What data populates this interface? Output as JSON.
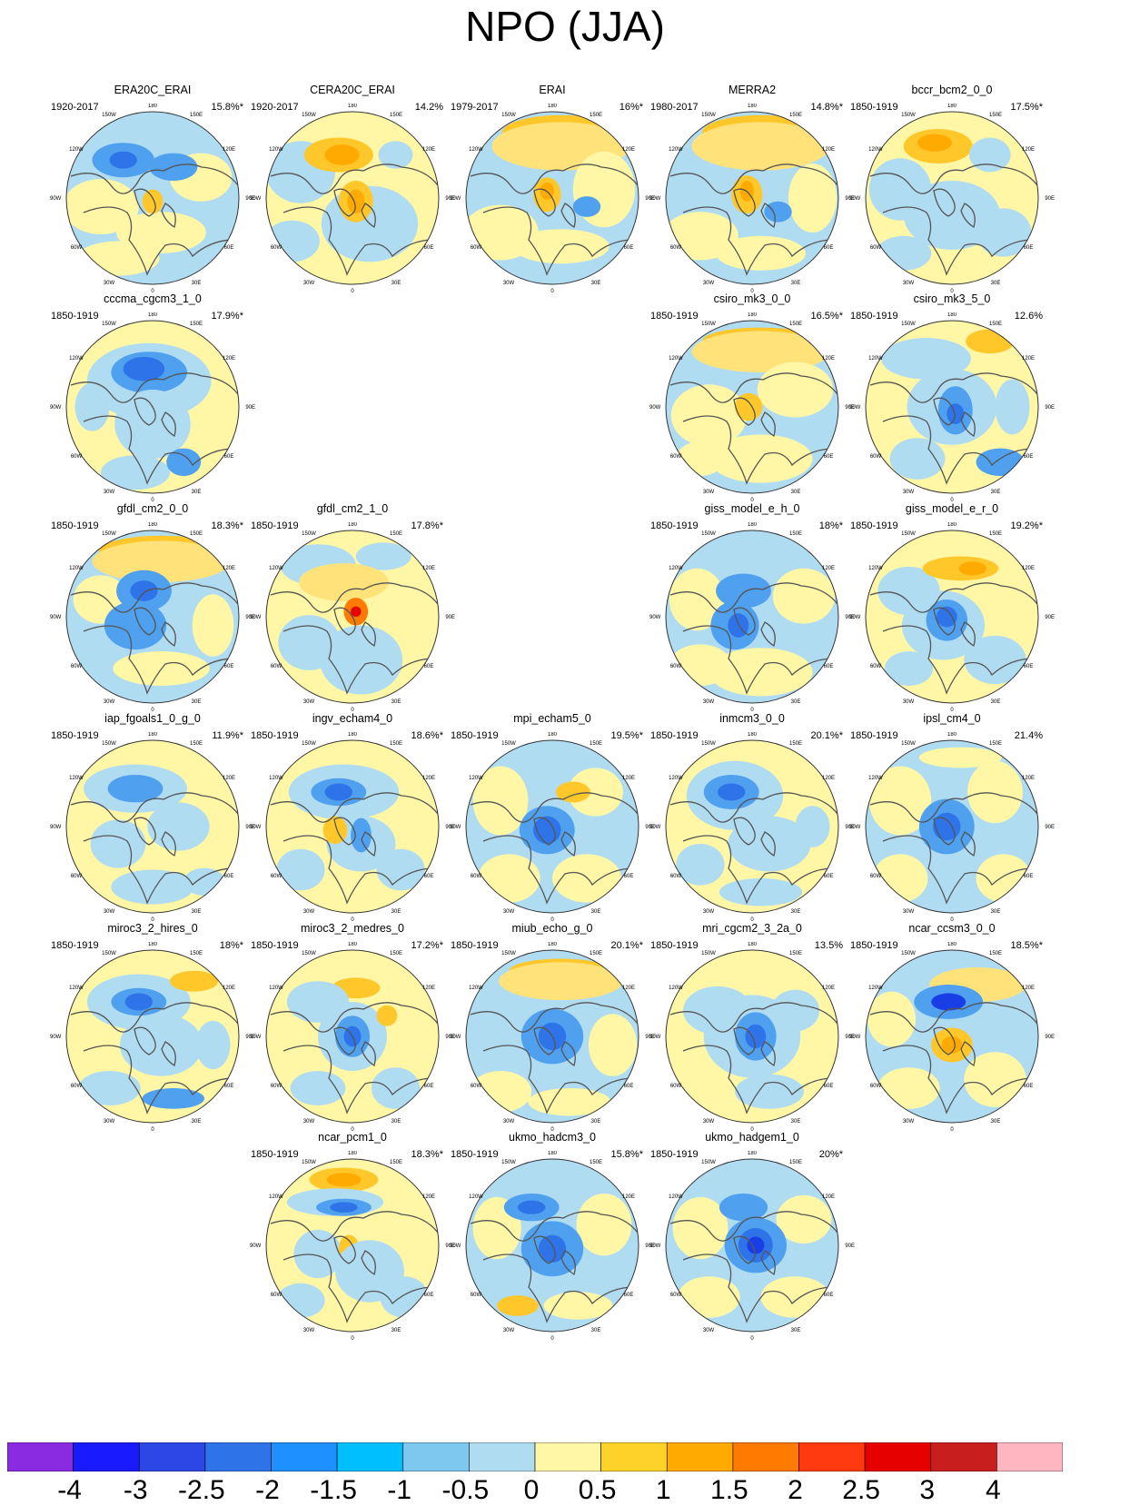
{
  "title": "NPO (JJA)",
  "axis_labels": {
    "top": "180",
    "bottom": "0",
    "left": "90W",
    "right": "90E",
    "upper_left_inner": "150W",
    "upper_right_inner": "150E",
    "upper_left_outer": "120W",
    "upper_right_outer": "120E",
    "lower_left_outer": "60W",
    "lower_right_outer": "60E",
    "lower_left_inner": "30W",
    "lower_right_inner": "30E"
  },
  "panels": [
    {
      "name": "ERA20C_ERAI",
      "years": "1920-2017",
      "pct": "15.8%*",
      "pattern": "era20c"
    },
    {
      "name": "CERA20C_ERAI",
      "years": "1920-2017",
      "pct": "14.2%",
      "pattern": "cera20c"
    },
    {
      "name": "ERAI",
      "years": "1979-2017",
      "pct": "16%*",
      "pattern": "erai"
    },
    {
      "name": "MERRA2",
      "years": "1980-2017",
      "pct": "14.8%*",
      "pattern": "merra2"
    },
    {
      "name": "bccr_bcm2_0_0",
      "years": "1850-1919",
      "pct": "17.5%*",
      "pattern": "bccr"
    },
    {
      "name": "cccma_cgcm3_1_0",
      "years": "1850-1919",
      "pct": "17.9%*",
      "pattern": "cccma"
    },
    {
      "name": "csiro_mk3_0_0",
      "years": "1850-1919",
      "pct": "16.5%*",
      "pattern": "csiro30"
    },
    {
      "name": "csiro_mk3_5_0",
      "years": "1850-1919",
      "pct": "12.6%",
      "pattern": "csiro35"
    },
    {
      "name": "gfdl_cm2_0_0",
      "years": "1850-1919",
      "pct": "18.3%*",
      "pattern": "gfdl20"
    },
    {
      "name": "gfdl_cm2_1_0",
      "years": "1850-1919",
      "pct": "17.8%*",
      "pattern": "gfdl21"
    },
    {
      "name": "giss_model_e_h_0",
      "years": "1850-1919",
      "pct": "18%*",
      "pattern": "gissh"
    },
    {
      "name": "giss_model_e_r_0",
      "years": "1850-1919",
      "pct": "19.2%*",
      "pattern": "gissr"
    },
    {
      "name": "iap_fgoals1_0_g_0",
      "years": "1850-1919",
      "pct": "11.9%*",
      "pattern": "iap"
    },
    {
      "name": "ingv_echam4_0",
      "years": "1850-1919",
      "pct": "18.6%*",
      "pattern": "ingv"
    },
    {
      "name": "mpi_echam5_0",
      "years": "1850-1919",
      "pct": "19.5%*",
      "pattern": "mpi"
    },
    {
      "name": "inmcm3_0_0",
      "years": "1850-1919",
      "pct": "20.1%*",
      "pattern": "inm"
    },
    {
      "name": "ipsl_cm4_0",
      "years": "1850-1919",
      "pct": "21.4%",
      "pattern": "ipsl"
    },
    {
      "name": "miroc3_2_hires_0",
      "years": "1850-1919",
      "pct": "18%*",
      "pattern": "mirochi"
    },
    {
      "name": "miroc3_2_medres_0",
      "years": "1850-1919",
      "pct": "17.2%*",
      "pattern": "mirocmed"
    },
    {
      "name": "miub_echo_g_0",
      "years": "1850-1919",
      "pct": "20.1%*",
      "pattern": "miub"
    },
    {
      "name": "mri_cgcm2_3_2a_0",
      "years": "1850-1919",
      "pct": "13.5%",
      "pattern": "mri"
    },
    {
      "name": "ncar_ccsm3_0_0",
      "years": "1850-1919",
      "pct": "18.5%*",
      "pattern": "ccsm"
    },
    {
      "name": "ncar_pcm1_0",
      "years": "1850-1919",
      "pct": "18.3%*",
      "pattern": "pcm"
    },
    {
      "name": "ukmo_hadcm3_0",
      "years": "1850-1919",
      "pct": "15.8%*",
      "pattern": "hadcm3"
    },
    {
      "name": "ukmo_hadgem1_0",
      "years": "1850-1919",
      "pct": "20%*",
      "pattern": "hadgem"
    }
  ],
  "colorbar": {
    "labels": [
      "-4",
      "-3",
      "-2.5",
      "-2",
      "-1.5",
      "-1",
      "-0.5",
      "0",
      "0.5",
      "1",
      "1.5",
      "2",
      "2.5",
      "3",
      "4"
    ],
    "colors": [
      "#8a2be2",
      "#1a1aff",
      "#2d46e6",
      "#2f73e8",
      "#1e90ff",
      "#00bfff",
      "#7ec8f0",
      "#b0dcf2",
      "#fff6a6",
      "#ffd22a",
      "#ffaa00",
      "#ff7a00",
      "#ff3a10",
      "#e60000",
      "#c81e1e",
      "#ffb6c1"
    ]
  }
}
